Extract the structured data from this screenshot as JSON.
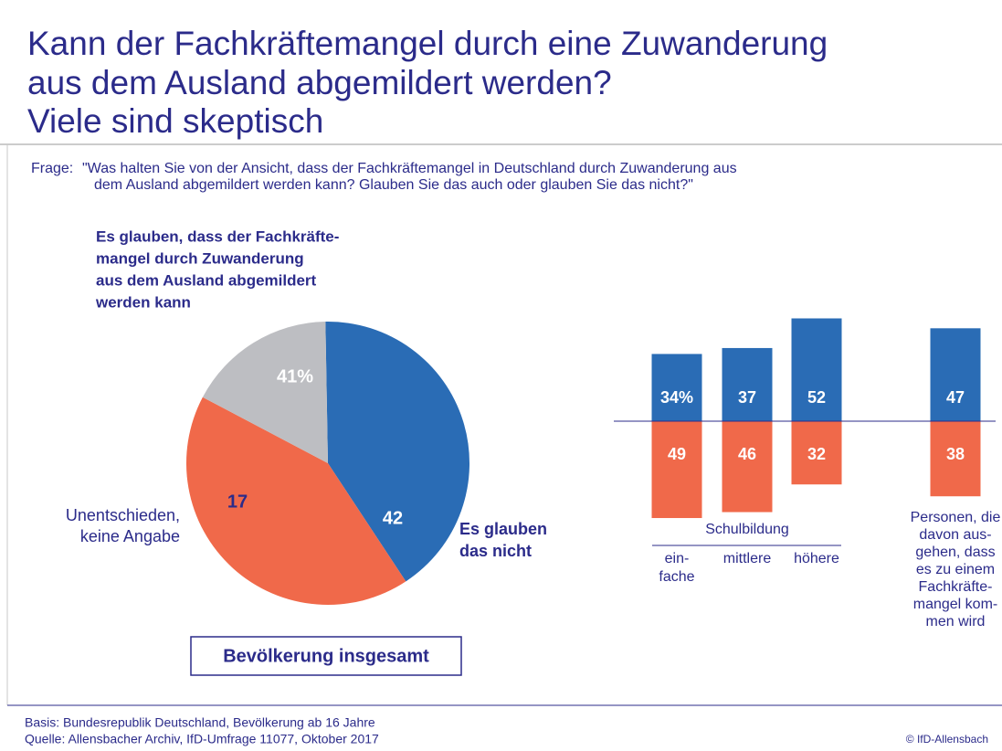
{
  "header": {
    "title_lines": [
      "Kann der Fachkräftemangel durch eine Zuwanderung",
      "aus dem Ausland abgemildert werden?",
      "Viele sind skeptisch"
    ],
    "question_label": "Frage:",
    "question_lines": [
      "\"Was halten Sie von der Ansicht, dass der Fachkräftemangel in Deutschland durch Zuwanderung aus",
      "dem Ausland abgemildert werden kann? Glauben Sie das auch oder glauben Sie das nicht?\""
    ]
  },
  "chart_data": [
    {
      "type": "pie",
      "subtitle": "Bevölkerung insgesamt",
      "categories": [
        [
          "Es glauben, dass der Fachkräfte-",
          "mangel durch Zuwanderung",
          "aus dem Ausland abgemildert",
          "werden kann"
        ],
        [
          "Es glauben",
          "das nicht"
        ],
        [
          "Unentschieden,",
          "keine Angabe"
        ]
      ],
      "values": [
        41,
        42,
        17
      ],
      "value_labels": [
        "41%",
        "42",
        "17"
      ],
      "colors": [
        "#2a6cb5",
        "#f0694a",
        "#bdbec2"
      ]
    },
    {
      "type": "bar",
      "layout": "diverging",
      "group_label": "Schulbildung",
      "categories": [
        [
          "ein-",
          "fache"
        ],
        [
          "mittlere"
        ],
        [
          "höhere"
        ],
        [
          "Personen, die",
          "davon aus-",
          "gehen, dass",
          "es zu einem",
          "Fachkräfte-",
          "mangel kom-",
          "men wird"
        ]
      ],
      "ylim": [
        -55,
        55
      ],
      "series": [
        {
          "color": "#2a6cb5",
          "values": [
            34,
            37,
            52,
            47
          ],
          "value_labels": [
            "34%",
            "37",
            "52",
            "47"
          ]
        },
        {
          "color": "#f0694a",
          "values": [
            49,
            46,
            32,
            38
          ]
        }
      ]
    }
  ],
  "footer": {
    "basis": "Basis: Bundesrepublik Deutschland, Bevölkerung ab 16 Jahre",
    "source": "Quelle: Allensbacher Archiv, IfD-Umfrage 11077, Oktober 2017",
    "copyright": "© IfD-Allensbach"
  }
}
